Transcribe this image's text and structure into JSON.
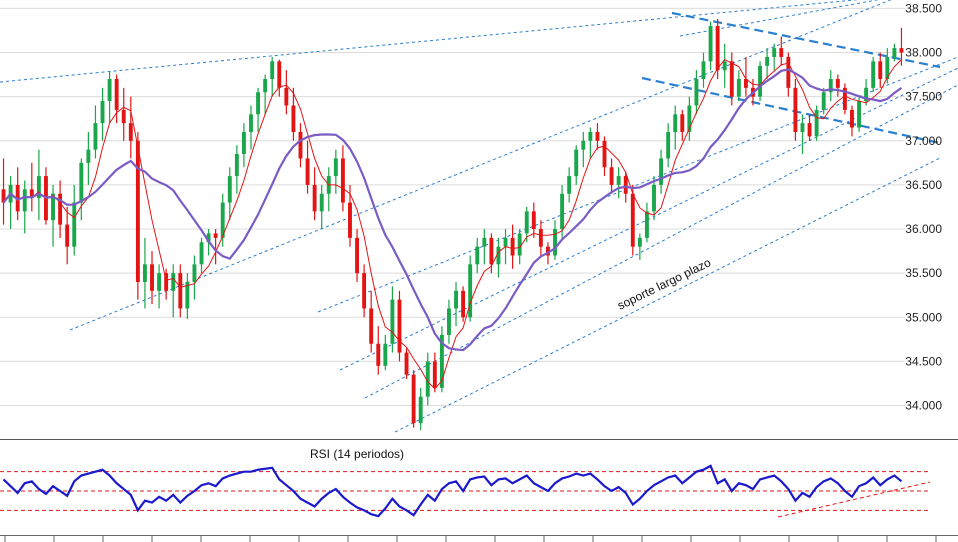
{
  "chart_data": {
    "type": "candlestick",
    "price_panel": {
      "ylim": [
        33.7,
        38.55
      ],
      "y_ticks": [
        "38.500",
        "38.000",
        "37.500",
        "37.000",
        "36.500",
        "36.000",
        "35.500",
        "35.000",
        "34.500",
        "34.000"
      ],
      "grid": true,
      "candles": [
        [
          36.45,
          36.8,
          36.05,
          36.3
        ],
        [
          36.3,
          36.6,
          36.0,
          36.5
        ],
        [
          36.5,
          36.7,
          36.1,
          36.2
        ],
        [
          36.2,
          36.55,
          35.95,
          36.45
        ],
        [
          36.45,
          36.75,
          36.2,
          36.35
        ],
        [
          36.35,
          36.9,
          36.1,
          36.6
        ],
        [
          36.6,
          36.7,
          36.05,
          36.1
        ],
        [
          36.1,
          36.5,
          35.8,
          36.4
        ],
        [
          36.4,
          36.55,
          35.9,
          36.05
        ],
        [
          36.05,
          36.25,
          35.6,
          35.8
        ],
        [
          35.8,
          36.5,
          35.7,
          36.3
        ],
        [
          36.3,
          36.8,
          36.1,
          36.75
        ],
        [
          36.75,
          37.1,
          36.5,
          36.9
        ],
        [
          36.9,
          37.4,
          36.8,
          37.2
        ],
        [
          37.2,
          37.6,
          37.0,
          37.45
        ],
        [
          37.45,
          37.78,
          37.2,
          37.7
        ],
        [
          37.7,
          37.75,
          37.2,
          37.35
        ],
        [
          37.35,
          37.6,
          37.0,
          37.2
        ],
        [
          37.2,
          37.5,
          36.8,
          37.0
        ],
        [
          37.0,
          37.1,
          35.2,
          35.4
        ],
        [
          35.4,
          35.9,
          35.1,
          35.6
        ],
        [
          35.6,
          35.75,
          35.15,
          35.3
        ],
        [
          35.3,
          35.6,
          35.1,
          35.5
        ],
        [
          35.5,
          35.55,
          35.2,
          35.3
        ],
        [
          35.3,
          35.6,
          35.0,
          35.5
        ],
        [
          35.5,
          35.6,
          35.0,
          35.1
        ],
        [
          35.1,
          35.5,
          34.98,
          35.4
        ],
        [
          35.4,
          35.7,
          35.2,
          35.6
        ],
        [
          35.6,
          35.9,
          35.5,
          35.85
        ],
        [
          35.85,
          36.0,
          35.7,
          35.95
        ],
        [
          35.95,
          36.0,
          35.6,
          35.9
        ],
        [
          35.9,
          36.4,
          35.8,
          36.3
        ],
        [
          36.3,
          36.7,
          36.1,
          36.6
        ],
        [
          36.6,
          36.95,
          36.4,
          36.85
        ],
        [
          36.85,
          37.2,
          36.7,
          37.1
        ],
        [
          37.1,
          37.4,
          36.9,
          37.3
        ],
        [
          37.3,
          37.6,
          37.1,
          37.55
        ],
        [
          37.55,
          37.75,
          37.3,
          37.7
        ],
        [
          37.7,
          37.95,
          37.5,
          37.9
        ],
        [
          37.9,
          37.92,
          37.5,
          37.6
        ],
        [
          37.6,
          37.8,
          37.3,
          37.4
        ],
        [
          37.4,
          37.6,
          37.0,
          37.1
        ],
        [
          37.1,
          37.2,
          36.7,
          36.8
        ],
        [
          36.8,
          37.0,
          36.4,
          36.5
        ],
        [
          36.5,
          36.7,
          36.1,
          36.2
        ],
        [
          36.2,
          36.5,
          36.0,
          36.4
        ],
        [
          36.4,
          36.7,
          36.2,
          36.6
        ],
        [
          36.6,
          36.9,
          36.4,
          36.8
        ],
        [
          36.8,
          36.95,
          36.2,
          36.3
        ],
        [
          36.3,
          36.5,
          35.8,
          35.9
        ],
        [
          35.9,
          36.0,
          35.4,
          35.5
        ],
        [
          35.5,
          35.6,
          35.0,
          35.1
        ],
        [
          35.1,
          35.3,
          34.6,
          34.7
        ],
        [
          34.7,
          34.9,
          34.35,
          34.45
        ],
        [
          34.45,
          34.8,
          34.4,
          34.7
        ],
        [
          34.7,
          35.35,
          34.6,
          35.2
        ],
        [
          35.2,
          35.3,
          34.5,
          34.6
        ],
        [
          34.6,
          34.65,
          34.3,
          34.35
        ],
        [
          34.35,
          34.4,
          33.75,
          33.8
        ],
        [
          33.8,
          34.2,
          33.72,
          34.1
        ],
        [
          34.1,
          34.6,
          34.0,
          34.5
        ],
        [
          34.5,
          34.6,
          34.15,
          34.2
        ],
        [
          34.2,
          34.9,
          34.15,
          34.8
        ],
        [
          34.8,
          35.2,
          34.7,
          35.1
        ],
        [
          35.1,
          35.4,
          34.9,
          35.3
        ],
        [
          35.3,
          35.35,
          34.95,
          35.0
        ],
        [
          35.0,
          35.7,
          34.95,
          35.6
        ],
        [
          35.6,
          35.9,
          35.5,
          35.8
        ],
        [
          35.8,
          36.0,
          35.6,
          35.9
        ],
        [
          35.9,
          35.95,
          35.5,
          35.6
        ],
        [
          35.6,
          35.9,
          35.45,
          35.8
        ],
        [
          35.8,
          36.0,
          35.6,
          35.9
        ],
        [
          35.9,
          36.05,
          35.55,
          35.7
        ],
        [
          35.7,
          36.0,
          35.6,
          35.95
        ],
        [
          35.95,
          36.25,
          35.85,
          36.2
        ],
        [
          36.2,
          36.3,
          35.9,
          36.0
        ],
        [
          36.0,
          36.1,
          35.7,
          35.8
        ],
        [
          35.8,
          35.85,
          35.6,
          35.7
        ],
        [
          35.7,
          36.1,
          35.65,
          36.0
        ],
        [
          36.0,
          36.5,
          35.9,
          36.4
        ],
        [
          36.4,
          36.7,
          36.3,
          36.6
        ],
        [
          36.6,
          36.95,
          36.5,
          36.9
        ],
        [
          36.9,
          37.1,
          36.7,
          37.0
        ],
        [
          37.0,
          37.15,
          36.8,
          37.1
        ],
        [
          37.1,
          37.2,
          36.9,
          37.0
        ],
        [
          37.0,
          37.05,
          36.6,
          36.7
        ],
        [
          36.7,
          36.8,
          36.4,
          36.5
        ],
        [
          36.5,
          36.7,
          36.35,
          36.6
        ],
        [
          36.6,
          36.65,
          36.3,
          36.4
        ],
        [
          36.4,
          36.5,
          35.7,
          35.8
        ],
        [
          35.8,
          35.95,
          35.65,
          35.9
        ],
        [
          35.9,
          36.3,
          35.85,
          36.2
        ],
        [
          36.2,
          36.6,
          36.1,
          36.5
        ],
        [
          36.5,
          36.9,
          36.4,
          36.8
        ],
        [
          36.8,
          37.2,
          36.7,
          37.1
        ],
        [
          37.1,
          37.4,
          36.9,
          37.3
        ],
        [
          37.3,
          37.35,
          37.0,
          37.1
        ],
        [
          37.1,
          37.5,
          37.0,
          37.4
        ],
        [
          37.4,
          37.8,
          37.3,
          37.7
        ],
        [
          37.7,
          38.0,
          37.6,
          37.9
        ],
        [
          37.9,
          38.35,
          37.8,
          38.3
        ],
        [
          38.3,
          38.38,
          37.7,
          37.8
        ],
        [
          37.8,
          38.1,
          37.6,
          37.9
        ],
        [
          37.9,
          38.0,
          37.4,
          37.5
        ],
        [
          37.5,
          37.8,
          37.45,
          37.7
        ],
        [
          37.7,
          37.95,
          37.5,
          37.6
        ],
        [
          37.6,
          37.7,
          37.4,
          37.5
        ],
        [
          37.5,
          37.9,
          37.45,
          37.85
        ],
        [
          37.85,
          38.05,
          37.7,
          37.95
        ],
        [
          37.95,
          38.1,
          37.8,
          38.05
        ],
        [
          38.05,
          38.18,
          37.85,
          37.95
        ],
        [
          37.95,
          38.0,
          37.5,
          37.6
        ],
        [
          37.6,
          37.7,
          37.0,
          37.1
        ],
        [
          37.1,
          37.3,
          36.85,
          37.2
        ],
        [
          37.2,
          37.3,
          37.0,
          37.05
        ],
        [
          37.05,
          37.4,
          37.0,
          37.35
        ],
        [
          37.35,
          37.6,
          37.3,
          37.55
        ],
        [
          37.55,
          37.8,
          37.45,
          37.7
        ],
        [
          37.7,
          37.75,
          37.5,
          37.6
        ],
        [
          37.6,
          37.65,
          37.3,
          37.35
        ],
        [
          37.35,
          37.4,
          37.05,
          37.15
        ],
        [
          37.15,
          37.5,
          37.1,
          37.45
        ],
        [
          37.45,
          37.7,
          37.4,
          37.6
        ],
        [
          37.6,
          37.95,
          37.55,
          37.9
        ],
        [
          37.9,
          38.0,
          37.6,
          37.7
        ],
        [
          37.7,
          38.05,
          37.65,
          37.95
        ],
        [
          37.95,
          38.1,
          37.9,
          38.05
        ],
        [
          38.05,
          38.28,
          37.85,
          38.0
        ]
      ],
      "moving_averages": [
        {
          "color": "#e31414",
          "period": 5
        },
        {
          "color": "#7b5cc4",
          "period": 14
        }
      ],
      "annotations": [
        {
          "text": "soporte largo plazo"
        }
      ]
    },
    "rsi_panel": {
      "title": "RSI (14 periodos)",
      "levels": [
        70,
        50,
        30
      ],
      "values": [
        62,
        55,
        48,
        58,
        60,
        52,
        47,
        55,
        50,
        45,
        60,
        66,
        68,
        70,
        72,
        66,
        58,
        52,
        46,
        30,
        40,
        38,
        44,
        40,
        46,
        38,
        45,
        50,
        56,
        58,
        55,
        63,
        66,
        68,
        70,
        70,
        72,
        73,
        74,
        62,
        56,
        50,
        42,
        38,
        34,
        42,
        48,
        52,
        44,
        38,
        33,
        30,
        26,
        24,
        32,
        42,
        34,
        30,
        25,
        36,
        46,
        40,
        52,
        58,
        60,
        50,
        62,
        64,
        65,
        56,
        62,
        63,
        58,
        62,
        66,
        58,
        54,
        50,
        58,
        63,
        65,
        68,
        66,
        68,
        62,
        55,
        50,
        54,
        48,
        36,
        42,
        50,
        56,
        60,
        64,
        66,
        58,
        64,
        70,
        72,
        76,
        58,
        62,
        50,
        58,
        56,
        52,
        62,
        64,
        66,
        60,
        52,
        40,
        48,
        44,
        54,
        60,
        63,
        58,
        50,
        44,
        55,
        58,
        64,
        56,
        62,
        66,
        60
      ]
    }
  }
}
